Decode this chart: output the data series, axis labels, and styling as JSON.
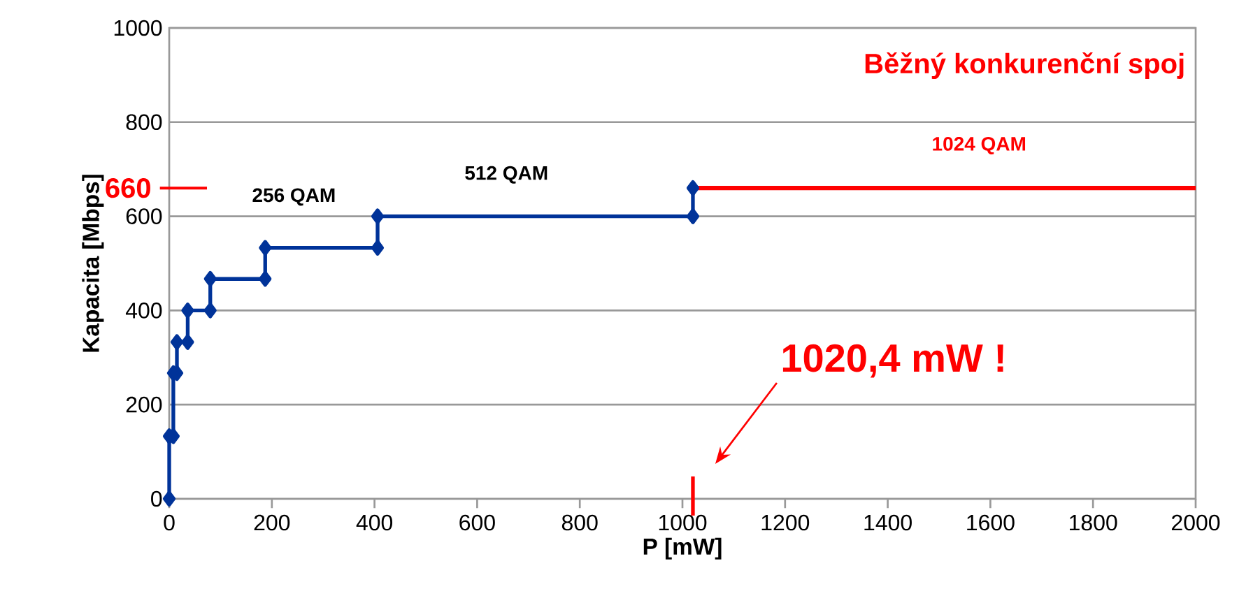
{
  "chart_data": {
    "type": "line",
    "xlabel": "P [mW]",
    "ylabel": "Kapacita [Mbps]",
    "xlim": [
      0,
      2000
    ],
    "ylim": [
      0,
      1000
    ],
    "xticks": [
      0,
      200,
      400,
      600,
      800,
      1000,
      1200,
      1400,
      1600,
      1800,
      2000
    ],
    "yticks": [
      0,
      200,
      400,
      600,
      800,
      1000
    ],
    "grid": "y",
    "series": [
      {
        "color": "#003399",
        "marker": "diamond",
        "x": [
          0,
          0,
          8,
          8,
          15,
          15,
          36,
          36,
          80,
          80,
          187,
          187,
          406,
          406,
          1020.4,
          1020.4
        ],
        "values": [
          0,
          133,
          133,
          267,
          267,
          333,
          333,
          400,
          400,
          467,
          467,
          533,
          533,
          600,
          600,
          660
        ]
      },
      {
        "name": "Běžný konkurenční spoj",
        "color": "#ff0000",
        "marker": "none",
        "x": [
          1020.4,
          2000
        ],
        "values": [
          660,
          660
        ]
      }
    ],
    "annotations": [
      "256 QAM",
      "512 QAM",
      "1024 QAM",
      "660",
      "1020,4 mW !"
    ]
  }
}
